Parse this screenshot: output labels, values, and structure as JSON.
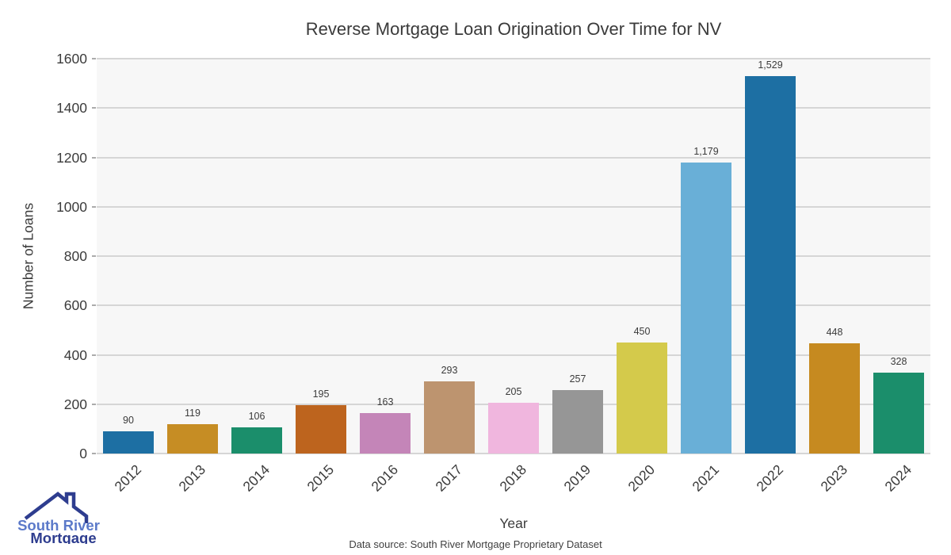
{
  "title": "Reverse Mortgage Loan Origination Over Time for NV",
  "chart_data": {
    "type": "bar",
    "title": "Reverse Mortgage Loan Origination Over Time for NV",
    "categories": [
      "2012",
      "2013",
      "2014",
      "2015",
      "2016",
      "2017",
      "2018",
      "2019",
      "2020",
      "2021",
      "2022",
      "2023",
      "2024"
    ],
    "values": [
      90,
      119,
      106,
      195,
      163,
      293,
      205,
      257,
      450,
      1179,
      1529,
      448,
      328
    ],
    "value_labels": [
      "90",
      "119",
      "106",
      "195",
      "163",
      "293",
      "205",
      "257",
      "450",
      "1,179",
      "1,529",
      "448",
      "328"
    ],
    "bar_colors": [
      "#1d6fa3",
      "#c68d24",
      "#1b8e6b",
      "#bd641e",
      "#c485b8",
      "#bd946f",
      "#f0b6de",
      "#969696",
      "#d4ca4b",
      "#69afd7",
      "#1d6fa3",
      "#c68a20",
      "#1b8e6b"
    ],
    "xlabel": "Year",
    "ylabel": "Number of Loans",
    "ylim": [
      0,
      1600
    ],
    "yticks": [
      0,
      200,
      400,
      600,
      800,
      1000,
      1200,
      1400,
      1600
    ],
    "grid": true,
    "legend_position": "none",
    "plot_bg_color": "#f7f7f7",
    "grid_color": "#d6d6d6"
  },
  "footer": {
    "source_text": "Data source: South River Mortgage Proprietary Dataset"
  },
  "logo": {
    "line1": "South River",
    "line2": "Mortgage",
    "line1_color": "#5b79c9",
    "line2_color": "#2e3d8f",
    "roof_color": "#2e3d8f"
  }
}
